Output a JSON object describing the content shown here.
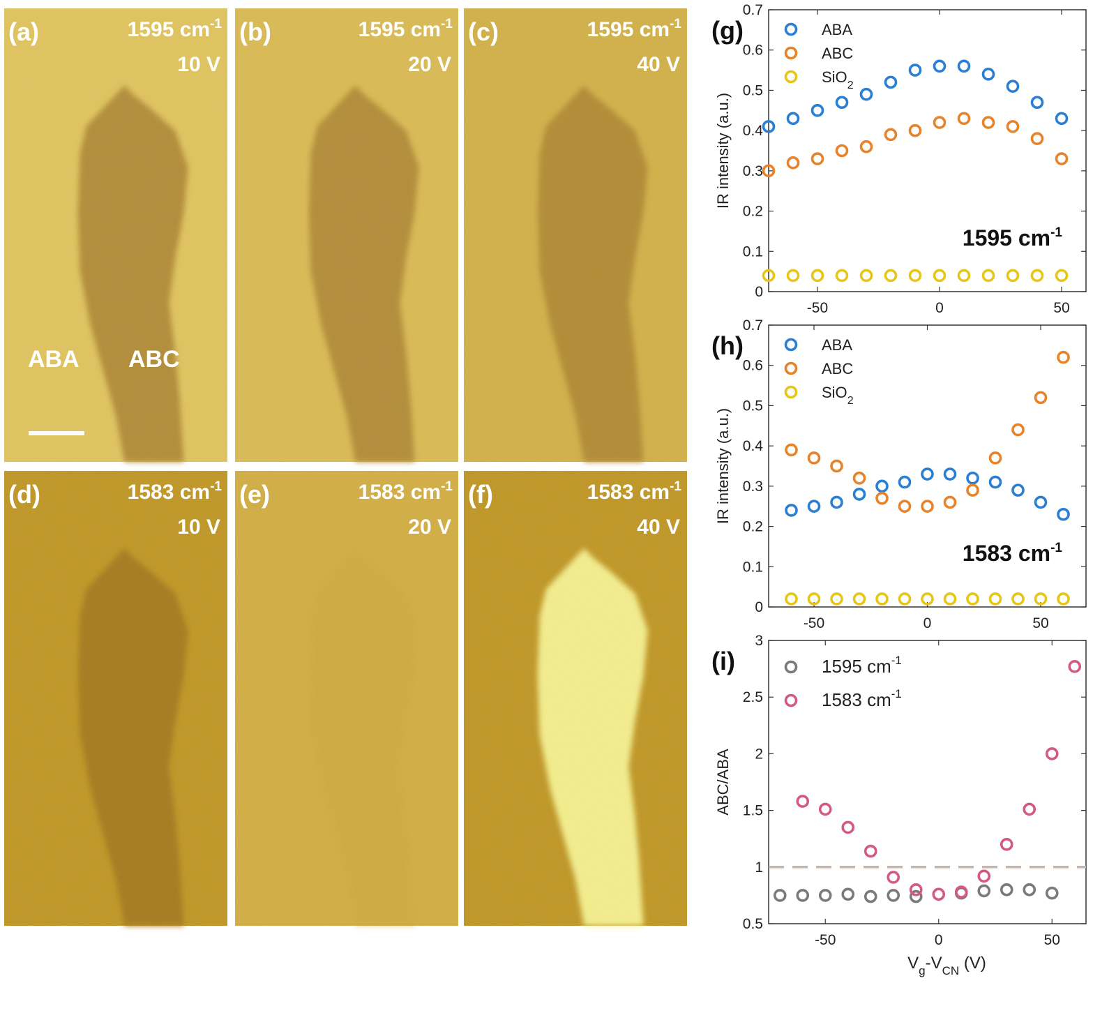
{
  "image_panels": [
    {
      "label": "(a)",
      "wavenumber": "1595 cm",
      "exponent": "-1",
      "voltage": "10 V",
      "mode": "dark",
      "shade": 0.55
    },
    {
      "label": "(b)",
      "wavenumber": "1595 cm",
      "exponent": "-1",
      "voltage": "20 V",
      "mode": "dark",
      "shade": 0.5
    },
    {
      "label": "(c)",
      "wavenumber": "1595 cm",
      "exponent": "-1",
      "voltage": "40 V",
      "mode": "dark",
      "shade": 0.45
    },
    {
      "label": "(d)",
      "wavenumber": "1583 cm",
      "exponent": "-1",
      "voltage": "10 V",
      "mode": "dark",
      "shade": 0.5
    },
    {
      "label": "(e)",
      "wavenumber": "1583 cm",
      "exponent": "-1",
      "voltage": "20 V",
      "mode": "faint",
      "shade": 0.9
    },
    {
      "label": "(f)",
      "wavenumber": "1583 cm",
      "exponent": "-1",
      "voltage": "40 V",
      "mode": "bright",
      "shade": 1.0
    }
  ],
  "region_labels": {
    "aba": "ABA",
    "abc": "ABC"
  },
  "colors": {
    "aba": "#2a7fd4",
    "abc": "#e8832a",
    "sio2": "#e6c619",
    "gray": "#7a7a7a",
    "pink": "#d45a86",
    "dashed": "#c8b4aa",
    "bg_light": "#d8b54a",
    "flake_dark": "#8a5a12",
    "flake_bright": "#f6f08a"
  },
  "chart_data": [
    {
      "type": "scatter",
      "panel_label": "(g)",
      "annotation": "1595 cm",
      "annotation_exponent": "-1",
      "ylabel": "IR intensity (a.u.)",
      "xlabel": "",
      "xlim": [
        -70,
        60
      ],
      "ylim": [
        0,
        0.7
      ],
      "xticks": [
        "-50",
        "0",
        "50"
      ],
      "yticks": [
        "0",
        "0.1",
        "0.2",
        "0.3",
        "0.4",
        "0.5",
        "0.6",
        "0.7"
      ],
      "x": [
        -70,
        -60,
        -50,
        -40,
        -30,
        -20,
        -10,
        0,
        10,
        20,
        30,
        40,
        50
      ],
      "legend": [
        {
          "name": "ABA",
          "sub": ""
        },
        {
          "name": "ABC",
          "sub": ""
        },
        {
          "name": "SiO",
          "sub": "2"
        }
      ],
      "series": [
        {
          "name": "ABA",
          "color": "#2a7fd4",
          "values": [
            0.41,
            0.43,
            0.45,
            0.47,
            0.49,
            0.52,
            0.55,
            0.56,
            0.56,
            0.54,
            0.51,
            0.47,
            0.43
          ]
        },
        {
          "name": "ABC",
          "color": "#e8832a",
          "values": [
            0.3,
            0.32,
            0.33,
            0.35,
            0.36,
            0.39,
            0.4,
            0.42,
            0.43,
            0.42,
            0.41,
            0.38,
            0.33
          ]
        },
        {
          "name": "SiO2",
          "color": "#e6c619",
          "values": [
            0.04,
            0.04,
            0.04,
            0.04,
            0.04,
            0.04,
            0.04,
            0.04,
            0.04,
            0.04,
            0.04,
            0.04,
            0.04
          ]
        }
      ]
    },
    {
      "type": "scatter",
      "panel_label": "(h)",
      "annotation": "1583 cm",
      "annotation_exponent": "-1",
      "ylabel": "IR intensity (a.u.)",
      "xlabel": "",
      "xlim": [
        -70,
        70
      ],
      "ylim": [
        0,
        0.7
      ],
      "xticks": [
        "-50",
        "0",
        "50"
      ],
      "yticks": [
        "0",
        "0.1",
        "0.2",
        "0.3",
        "0.4",
        "0.5",
        "0.6",
        "0.7"
      ],
      "x": [
        -60,
        -50,
        -40,
        -30,
        -20,
        -10,
        0,
        10,
        20,
        30,
        40,
        50,
        60
      ],
      "legend": [
        {
          "name": "ABA",
          "sub": ""
        },
        {
          "name": "ABC",
          "sub": ""
        },
        {
          "name": "SiO",
          "sub": "2"
        }
      ],
      "series": [
        {
          "name": "ABA",
          "color": "#2a7fd4",
          "values": [
            0.24,
            0.25,
            0.26,
            0.28,
            0.3,
            0.31,
            0.33,
            0.33,
            0.32,
            0.31,
            0.29,
            0.26,
            0.23
          ]
        },
        {
          "name": "ABC",
          "color": "#e8832a",
          "values": [
            0.39,
            0.37,
            0.35,
            0.32,
            0.27,
            0.25,
            0.25,
            0.26,
            0.29,
            0.37,
            0.44,
            0.52,
            0.62
          ]
        },
        {
          "name": "SiO2",
          "color": "#e6c619",
          "values": [
            0.02,
            0.02,
            0.02,
            0.02,
            0.02,
            0.02,
            0.02,
            0.02,
            0.02,
            0.02,
            0.02,
            0.02,
            0.02
          ]
        }
      ]
    },
    {
      "type": "scatter",
      "panel_label": "(i)",
      "ylabel": "ABC/ABA",
      "xlabel": "V",
      "xlabel_sub1": "g",
      "xlabel_mid": "-V",
      "xlabel_sub2": "CN",
      "xlabel_end": " (V)",
      "xlim": [
        -75,
        65
      ],
      "ylim": [
        0.5,
        3
      ],
      "xticks": [
        "-50",
        "0",
        "50"
      ],
      "yticks": [
        "0.5",
        "1",
        "1.5",
        "2",
        "2.5",
        "3"
      ],
      "reference_line": 1,
      "legend": [
        {
          "name": "1595 cm",
          "sup": "-1"
        },
        {
          "name": "1583 cm",
          "sup": "-1"
        }
      ],
      "series": [
        {
          "name": "1595 cm-1",
          "color": "#7a7a7a",
          "x": [
            -70,
            -60,
            -50,
            -40,
            -30,
            -20,
            -10,
            10,
            20,
            30,
            40,
            50
          ],
          "values": [
            0.75,
            0.75,
            0.75,
            0.76,
            0.74,
            0.75,
            0.74,
            0.77,
            0.79,
            0.8,
            0.8,
            0.77
          ]
        },
        {
          "name": "1583 cm-1",
          "color": "#d45a86",
          "x": [
            -60,
            -50,
            -40,
            -30,
            -20,
            -10,
            0,
            10,
            20,
            30,
            40,
            50,
            60
          ],
          "values": [
            1.58,
            1.51,
            1.35,
            1.14,
            0.91,
            0.8,
            0.76,
            0.78,
            0.92,
            1.2,
            1.51,
            2.0,
            2.77
          ]
        }
      ]
    }
  ]
}
